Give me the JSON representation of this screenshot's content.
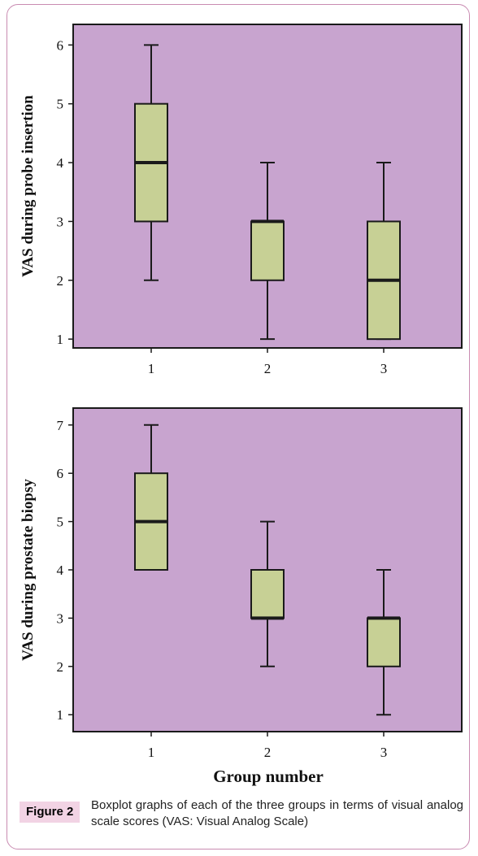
{
  "x_axis_title": "Group number",
  "caption": {
    "label": "Figure 2",
    "text": "Boxplot graphs of each of the three groups in terms of visual analog scale scores (VAS: Visual Analog Scale)"
  },
  "colors": {
    "plot_background": "#c8a4cf",
    "box_fill": "#c7d095",
    "stroke": "#1a1a1a",
    "frame_border": "#c98bb1",
    "label_background": "#f2d3e4"
  },
  "chart_data": [
    {
      "type": "box",
      "ylabel": "VAS during probe insertion",
      "categories": [
        "1",
        "2",
        "3"
      ],
      "yticks": [
        1,
        2,
        3,
        4,
        5,
        6
      ],
      "ylim": [
        0.85,
        6.35
      ],
      "grid": false,
      "boxes": [
        {
          "group": "1",
          "min": 2,
          "q1": 3,
          "median": 4,
          "q3": 5,
          "max": 6
        },
        {
          "group": "2",
          "min": 1,
          "q1": 2,
          "median": 3,
          "q3": 3,
          "max": 4
        },
        {
          "group": "3",
          "min": 1,
          "q1": 1,
          "median": 2,
          "q3": 3,
          "max": 4
        }
      ]
    },
    {
      "type": "box",
      "ylabel": "VAS during prostate biopsy",
      "categories": [
        "1",
        "2",
        "3"
      ],
      "yticks": [
        1,
        2,
        3,
        4,
        5,
        6,
        7
      ],
      "ylim": [
        0.65,
        7.35
      ],
      "grid": false,
      "boxes": [
        {
          "group": "1",
          "min": 4,
          "q1": 4,
          "median": 5,
          "q3": 6,
          "max": 7
        },
        {
          "group": "2",
          "min": 2,
          "q1": 3,
          "median": 3,
          "q3": 4,
          "max": 5
        },
        {
          "group": "3",
          "min": 1,
          "q1": 2,
          "median": 3,
          "q3": 3,
          "max": 4
        }
      ]
    }
  ]
}
